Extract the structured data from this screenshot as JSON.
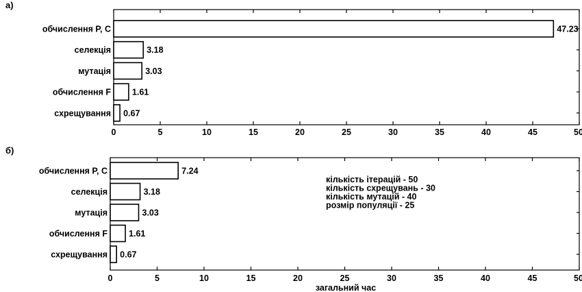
{
  "chart_data": [
    {
      "type": "bar",
      "orientation": "horizontal",
      "panel_label": "а)",
      "categories": [
        "обчислення Р, С",
        "селекція",
        "мутація",
        "обчислення F",
        "схрещування"
      ],
      "values": [
        47.23,
        3.18,
        3.03,
        1.61,
        0.67
      ],
      "value_labels": [
        "47.23",
        "3.18",
        "3.03",
        "1.61",
        "0.67"
      ],
      "xlim": [
        0,
        50
      ],
      "xticks": [
        "0",
        "5",
        "10",
        "15",
        "20",
        "25",
        "30",
        "35",
        "40",
        "45",
        "50"
      ],
      "xlabel": "",
      "grid": false
    },
    {
      "type": "bar",
      "orientation": "horizontal",
      "panel_label": "б)",
      "categories": [
        "обчислення Р, С",
        "селекція",
        "мутація",
        "обчислення F",
        "схрещування"
      ],
      "values": [
        7.24,
        3.18,
        3.03,
        1.61,
        0.67
      ],
      "value_labels": [
        "7.24",
        "3.18",
        "3.03",
        "1.61",
        "0.67"
      ],
      "xlim": [
        0,
        50
      ],
      "xticks": [
        "0",
        "5",
        "10",
        "15",
        "20",
        "25",
        "30",
        "35",
        "40",
        "45",
        "50"
      ],
      "xlabel": "загальний час",
      "annotations": [
        "кількість ітерацій - 50",
        "кількість схрещувань - 30",
        "кількість мутацій - 40",
        "розмір популяції - 25"
      ],
      "grid": false
    }
  ]
}
